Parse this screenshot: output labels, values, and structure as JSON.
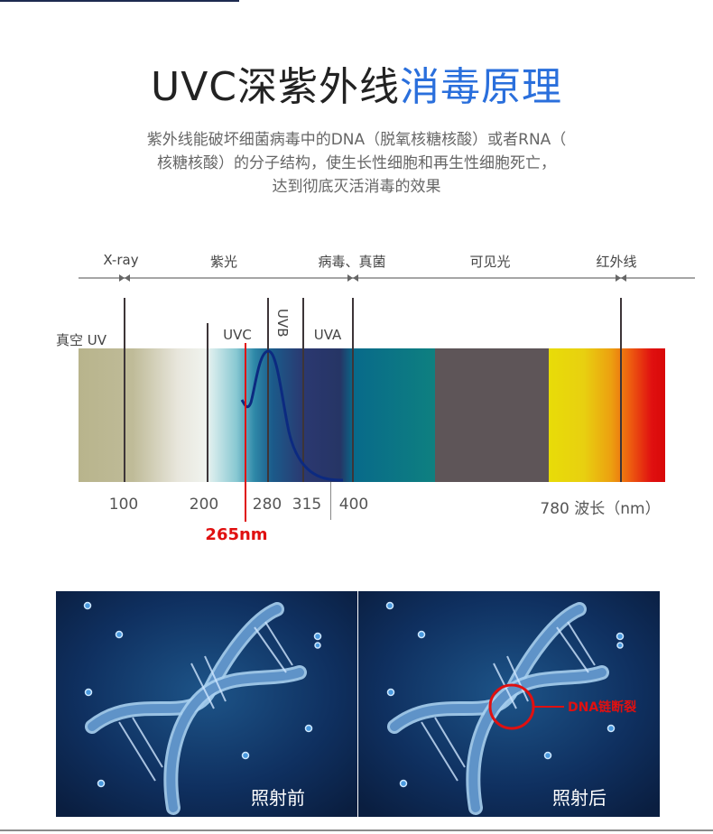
{
  "title": {
    "part1": "UVC深紫外线",
    "part2": "消毒原理"
  },
  "subtitle": [
    "紫外线能破坏细菌病毒中的DNA（脱氧核糖核酸）或者RNA（",
    "核糖核酸）的分子结构，使生长性细胞和再生性细胞死亡，",
    "达到彻底灭活消毒的效果"
  ],
  "spectrum": {
    "regions": [
      "X-ray",
      "紫光",
      "病毒、真菌",
      "可见光",
      "红外线"
    ],
    "bands": {
      "vacuum": "真空 UV",
      "uvc": "UVC",
      "uvb": "UVB",
      "uva": "UVA"
    },
    "ticks": [
      "100",
      "200",
      "280",
      "315",
      "400",
      "780 波长（nm）"
    ],
    "highlight": "265nm",
    "colors": {
      "highlight": "#e01010",
      "curve": "#0c2a80"
    }
  },
  "dna": {
    "before_label": "照射前",
    "after_label": "照射后",
    "break_label": "DNA链断裂"
  }
}
